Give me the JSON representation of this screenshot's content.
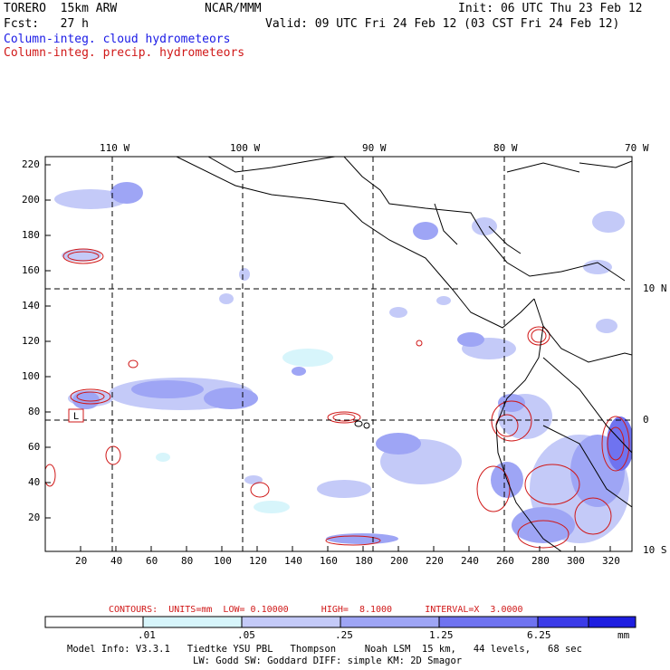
{
  "header": {
    "model": "TORERO  15km ARW",
    "org": "NCAR/MMM",
    "init": "Init: 06 UTC Thu 23 Feb 12",
    "fcst": "Fcst:   27 h",
    "valid": "Valid: 09 UTC Fri 24 Feb 12 (03 CST Fri 24 Feb 12)"
  },
  "legend": {
    "cloud": "Column-integ. cloud hydrometeors",
    "precip": "Column-integ. precip. hydrometeors"
  },
  "axes": {
    "top_lon": [
      "110 W",
      "100 W",
      "90 W",
      "80 W",
      "70 W"
    ],
    "right_lat": [
      "10 N",
      "0",
      "10 S"
    ],
    "left_ticks": [
      "220",
      "200",
      "180",
      "160",
      "140",
      "120",
      "100",
      "80",
      "60",
      "40",
      "20"
    ],
    "bottom_ticks": [
      "20",
      "40",
      "60",
      "80",
      "100",
      "120",
      "140",
      "160",
      "180",
      "200",
      "220",
      "240",
      "260",
      "280",
      "300",
      "320"
    ]
  },
  "low_marker": "L",
  "contours": {
    "label": "CONTOURS:  UNITS=mm  LOW= 0.10000      HIGH=  8.1000      INTERVAL=X  3.0000"
  },
  "colorbar": {
    "labels": [
      ".01",
      ".05",
      ".25",
      "1.25",
      "6.25",
      "mm"
    ],
    "colors": [
      "#ffffff",
      "#d7f5fb",
      "#c4caf8",
      "#9ea5f5",
      "#6f73f0",
      "#3b3be8",
      "#1e1ee0"
    ]
  },
  "model_info": {
    "line1": "Model Info: V3.3.1   Tiedtke YSU PBL   Thompson     Noah LSM  15 km,   44 levels,   68 sec",
    "line2": "LW: Godd SW: Goddard DIFF: simple KM: 2D Smagor"
  }
}
